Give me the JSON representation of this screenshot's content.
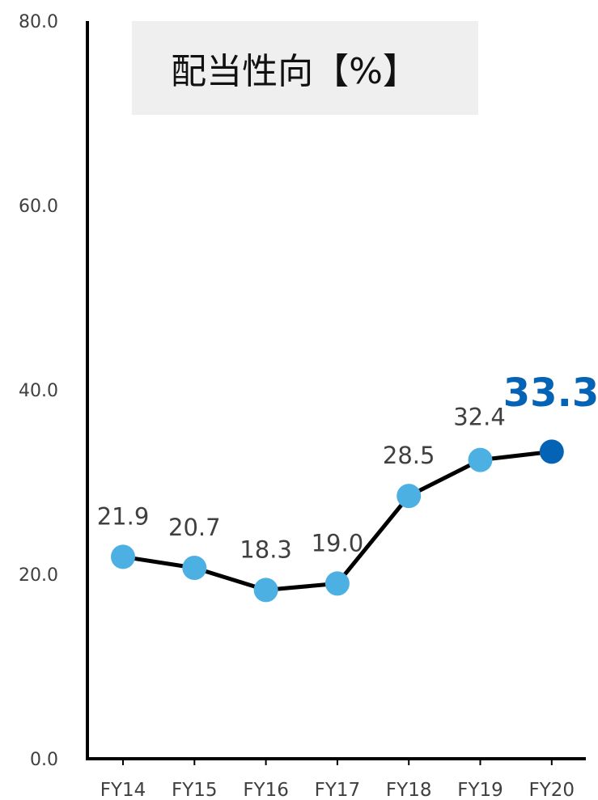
{
  "chart_data": {
    "type": "line",
    "title": "配当性向【%】",
    "xlabel": "",
    "ylabel": "",
    "categories": [
      "FY14",
      "FY15",
      "FY16",
      "FY17",
      "FY18",
      "FY19",
      "FY20"
    ],
    "series": [
      {
        "values": [
          21.9,
          20.7,
          18.3,
          19.0,
          28.5,
          32.4,
          33.3
        ]
      }
    ],
    "data_labels": [
      "21.9",
      "20.7",
      "18.3",
      "19.0",
      "28.5",
      "32.4",
      "33.3"
    ],
    "ylim": [
      0,
      80
    ],
    "y_ticks": [
      "0.0",
      "20.0",
      "40.0",
      "60.0",
      "80.0"
    ],
    "grid": false,
    "legend": "none",
    "highlight_index": 6,
    "colors": {
      "line": "#000000",
      "marker": "#4db0e2",
      "marker_highlight": "#0563b5",
      "highlight_label": "#0563b5",
      "title_box": "#efefef",
      "axis": "#000000",
      "tick_label": "#404040"
    }
  }
}
